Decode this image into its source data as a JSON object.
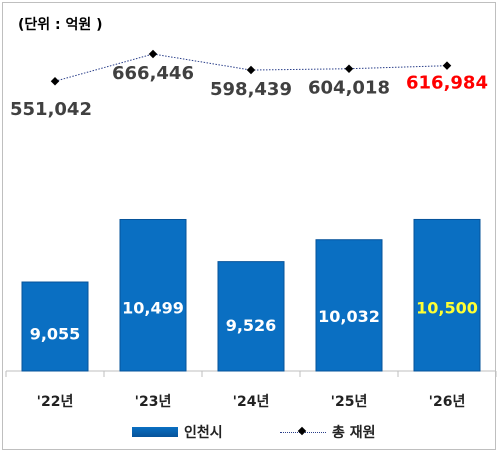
{
  "unit_label": "(단위 : 억원 )",
  "colors": {
    "bar": "#0a6fc2",
    "bar_border": "#06539a",
    "bar_label": "#ffffff",
    "bar_label_highlight": "#ffff33",
    "line": "#2a3f8a",
    "marker": "#000000",
    "total_label": "#404040",
    "total_label_highlight": "#ff0000"
  },
  "chart_data": {
    "type": "bar",
    "categories": [
      "'22년",
      "'23년",
      "'24년",
      "'25년",
      "'26년"
    ],
    "series": [
      {
        "name": "인천시",
        "type": "bar",
        "values": [
          9055,
          10499,
          9526,
          10032,
          10500
        ],
        "labels": [
          "9,055",
          "10,499",
          "9,526",
          "10,032",
          "10,500"
        ]
      },
      {
        "name": "총 재원",
        "type": "line",
        "values": [
          551042,
          666446,
          598439,
          604018,
          616984
        ],
        "labels": [
          "551,042",
          "666,446",
          "598,439",
          "604,018",
          "616,984"
        ]
      }
    ],
    "highlight_index": 4,
    "legend": {
      "position": "bottom"
    }
  }
}
